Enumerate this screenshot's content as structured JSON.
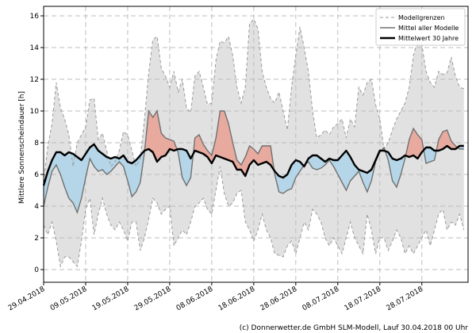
{
  "chart_data": {
    "type": "line",
    "title": "",
    "xlabel": "",
    "ylabel": "Mittlere Sonnenscheindauer [h]",
    "ylim": [
      -0.8,
      16.6
    ],
    "yticks": [
      0,
      2,
      4,
      6,
      8,
      10,
      12,
      14,
      16
    ],
    "xticks": [
      {
        "day": 0,
        "label": "29.04.2018"
      },
      {
        "day": 10,
        "label": "09.05.2018"
      },
      {
        "day": 20,
        "label": "19.05.2018"
      },
      {
        "day": 30,
        "label": "29.05.2018"
      },
      {
        "day": 40,
        "label": "08.06.2018"
      },
      {
        "day": 50,
        "label": "18.06.2018"
      },
      {
        "day": 60,
        "label": "28.06.2018"
      },
      {
        "day": 70,
        "label": "08.07.2018"
      },
      {
        "day": 80,
        "label": "18.07.2018"
      },
      {
        "day": 90,
        "label": "28.07.2018"
      }
    ],
    "xlim": [
      0,
      101
    ],
    "grid": true,
    "legend": {
      "position": "top-right",
      "entries": [
        {
          "label": "Modellgrenzen",
          "style": "dashed-gray"
        },
        {
          "label": "Mittel aller Modelle",
          "style": "solid-gray"
        },
        {
          "label": "Mittelwert 30 Jahre",
          "style": "solid-black-thick"
        }
      ]
    },
    "colors": {
      "envelope": "#e1e1e1",
      "above": "#e8aa9e",
      "below": "#b5d6e8",
      "model_line": "#707070",
      "climate_line": "#000000",
      "bounds_line": "#9a9a9a",
      "grid": "#bcbcbc"
    },
    "series": [
      {
        "name": "Modellgrenzen (oben)",
        "values": [
          5.5,
          7.8,
          9.2,
          11.8,
          10.2,
          9.5,
          8.5,
          6.5,
          8.0,
          8.5,
          9.0,
          10.7,
          10.8,
          8.2,
          8.6,
          7.5,
          6.5,
          6.8,
          7.5,
          8.7,
          8.5,
          7.5,
          6.5,
          7.0,
          9.5,
          12.4,
          14.5,
          14.7,
          12.7,
          12.2,
          11.5,
          12.5,
          11.2,
          12.0,
          10.2,
          9.9,
          12.2,
          12.5,
          11.5,
          10.4,
          10.5,
          13.2,
          14.4,
          14.3,
          14.7,
          13.5,
          11.5,
          10.5,
          11.5,
          15.5,
          15.8,
          15.2,
          12.5,
          11.5,
          10.8,
          10.5,
          11.2,
          10.0,
          8.8,
          11.5,
          13.5,
          15.3,
          14.0,
          12.5,
          10.0,
          8.3,
          8.5,
          8.8,
          8.5,
          9.0,
          9.2,
          9.5,
          8.3,
          9.5,
          9.0,
          11.5,
          11.0,
          11.8,
          12.0,
          10.4,
          9.5,
          7.6,
          8.0,
          8.8,
          9.5,
          10.0,
          10.5,
          11.5,
          13.5,
          14.5,
          14.2,
          12.5,
          11.8,
          11.5,
          12.5,
          12.3,
          12.4,
          13.4,
          12.2,
          11.5,
          11.4
        ]
      },
      {
        "name": "Modellgrenzen (unten)",
        "values": [
          2.8,
          2.2,
          3.0,
          1.8,
          0.2,
          0.8,
          0.8,
          0.5,
          0.2,
          1.8,
          3.8,
          4.5,
          2.2,
          3.5,
          4.5,
          3.5,
          2.8,
          2.5,
          3.0,
          2.5,
          1.8,
          3.0,
          3.0,
          1.2,
          2.0,
          3.2,
          4.5,
          4.2,
          3.5,
          3.8,
          4.0,
          1.5,
          2.0,
          2.5,
          2.2,
          3.0,
          4.0,
          4.2,
          4.5,
          3.8,
          3.5,
          5.0,
          6.5,
          4.8,
          4.0,
          4.2,
          4.8,
          5.0,
          3.0,
          2.5,
          1.8,
          2.5,
          3.5,
          2.5,
          2.0,
          1.0,
          0.9,
          0.8,
          1.5,
          1.8,
          1.0,
          2.0,
          3.0,
          2.5,
          3.8,
          3.5,
          3.0,
          2.0,
          1.5,
          2.0,
          1.5,
          1.0,
          2.0,
          3.0,
          2.0,
          1.5,
          1.0,
          3.5,
          2.5,
          1.0,
          2.0,
          2.0,
          1.2,
          1.8,
          2.5,
          2.0,
          1.0,
          1.5,
          1.0,
          1.5,
          2.0,
          2.5,
          1.5,
          2.5,
          3.5,
          3.8,
          2.5,
          3.0,
          2.8,
          3.5,
          2.5
        ]
      },
      {
        "name": "Mittel aller Modelle",
        "values": [
          4.0,
          5.2,
          6.2,
          6.6,
          6.0,
          5.2,
          4.5,
          4.2,
          3.6,
          4.5,
          5.8,
          7.0,
          6.5,
          6.2,
          6.3,
          6.0,
          6.2,
          6.5,
          6.8,
          6.5,
          5.6,
          4.6,
          4.9,
          5.5,
          7.4,
          10.0,
          9.6,
          10.0,
          8.6,
          8.3,
          8.2,
          8.1,
          7.4,
          5.8,
          5.3,
          5.8,
          8.3,
          8.5,
          7.9,
          7.5,
          7.2,
          8.3,
          10.0,
          10.0,
          9.2,
          8.0,
          6.9,
          6.6,
          7.1,
          7.8,
          7.6,
          7.3,
          7.8,
          7.8,
          7.8,
          6.0,
          4.9,
          4.8,
          5.0,
          5.1,
          5.8,
          6.2,
          6.6,
          6.8,
          6.4,
          6.3,
          6.4,
          6.6,
          6.9,
          6.5,
          6.0,
          5.5,
          5.0,
          5.6,
          5.9,
          6.2,
          5.5,
          4.9,
          5.6,
          6.8,
          7.4,
          7.7,
          6.9,
          5.6,
          5.2,
          6.0,
          7.0,
          8.2,
          8.9,
          8.5,
          8.2,
          6.7,
          6.8,
          6.9,
          8.2,
          8.7,
          8.8,
          8.1,
          7.8,
          7.6,
          7.6
        ]
      },
      {
        "name": "Mittelwert 30 Jahre",
        "values": [
          5.3,
          6.2,
          6.9,
          7.4,
          7.4,
          7.2,
          7.4,
          7.3,
          7.1,
          6.9,
          7.3,
          7.7,
          7.9,
          7.5,
          7.3,
          7.1,
          7.0,
          7.1,
          7.0,
          7.2,
          6.8,
          6.7,
          6.9,
          7.2,
          7.5,
          7.6,
          7.4,
          6.8,
          7.1,
          7.2,
          7.6,
          7.5,
          7.6,
          7.6,
          7.5,
          7.0,
          7.5,
          7.4,
          7.3,
          7.1,
          6.7,
          7.2,
          7.1,
          7.0,
          6.9,
          6.8,
          6.3,
          6.3,
          5.9,
          6.6,
          6.9,
          6.6,
          6.7,
          6.8,
          6.6,
          6.2,
          5.9,
          5.8,
          6.0,
          6.6,
          6.9,
          6.8,
          6.5,
          7.0,
          7.2,
          7.2,
          7.0,
          6.8,
          7.0,
          6.9,
          6.9,
          7.2,
          7.5,
          7.1,
          6.6,
          6.3,
          6.2,
          6.1,
          6.3,
          6.9,
          7.5,
          7.5,
          7.4,
          7.0,
          6.9,
          7.0,
          7.2,
          7.1,
          7.2,
          7.0,
          7.4,
          7.7,
          7.7,
          7.5,
          7.5,
          7.6,
          7.8,
          7.6,
          7.6,
          7.8,
          7.8
        ]
      }
    ]
  },
  "footer": {
    "credit": "(c) Donnerwetter.de GmbH SLM-Modell, Lauf 30.04.2018 00 Uhr"
  }
}
